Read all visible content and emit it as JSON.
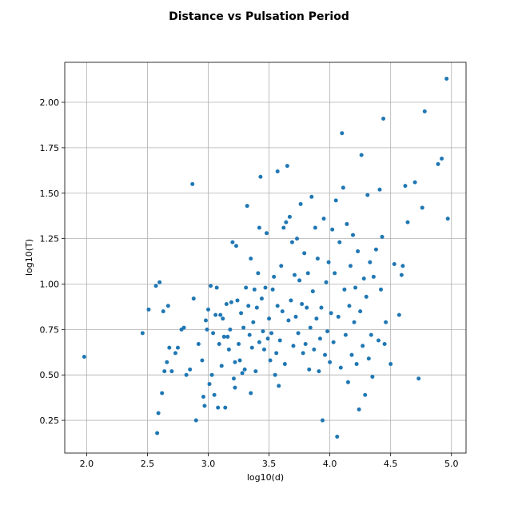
{
  "chart_data": {
    "type": "scatter",
    "title": "Distance vs Pulsation Period",
    "xlabel": "log10(d)",
    "ylabel": "log10(T)",
    "xlim": [
      1.82,
      5.12
    ],
    "ylim": [
      0.07,
      2.22
    ],
    "xticks": [
      2.0,
      2.5,
      3.0,
      3.5,
      4.0,
      4.5,
      5.0
    ],
    "xtick_labels": [
      "2.0",
      "2.5",
      "3.0",
      "3.5",
      "4.0",
      "4.5",
      "5.0"
    ],
    "yticks": [
      0.25,
      0.5,
      0.75,
      1.0,
      1.25,
      1.5,
      1.75,
      2.0
    ],
    "ytick_labels": [
      "0.25",
      "0.50",
      "0.75",
      "1.00",
      "1.25",
      "1.50",
      "1.75",
      "2.00"
    ],
    "grid": true,
    "point_color": "#1f77b4",
    "series": [
      {
        "points": [
          [
            1.98,
            0.6
          ],
          [
            2.46,
            0.73
          ],
          [
            2.51,
            0.86
          ],
          [
            2.57,
            0.99
          ],
          [
            2.58,
            0.18
          ],
          [
            2.59,
            0.29
          ],
          [
            2.6,
            1.01
          ],
          [
            2.62,
            0.4
          ],
          [
            2.63,
            0.85
          ],
          [
            2.64,
            0.52
          ],
          [
            2.66,
            0.57
          ],
          [
            2.67,
            0.88
          ],
          [
            2.68,
            0.65
          ],
          [
            2.7,
            0.52
          ],
          [
            2.73,
            0.62
          ],
          [
            2.75,
            0.65
          ],
          [
            2.78,
            0.75
          ],
          [
            2.8,
            0.76
          ],
          [
            2.82,
            0.5
          ],
          [
            2.85,
            0.53
          ],
          [
            2.87,
            1.55
          ],
          [
            2.88,
            0.92
          ],
          [
            2.9,
            0.25
          ],
          [
            2.92,
            0.67
          ],
          [
            2.95,
            0.58
          ],
          [
            2.96,
            0.38
          ],
          [
            2.97,
            0.33
          ],
          [
            2.98,
            0.8
          ],
          [
            2.99,
            0.75
          ],
          [
            3.0,
            0.86
          ],
          [
            3.01,
            0.45
          ],
          [
            3.02,
            0.99
          ],
          [
            3.03,
            0.5
          ],
          [
            3.04,
            0.73
          ],
          [
            3.05,
            0.39
          ],
          [
            3.06,
            0.83
          ],
          [
            3.07,
            0.98
          ],
          [
            3.08,
            0.32
          ],
          [
            3.09,
            0.67
          ],
          [
            3.1,
            0.83
          ],
          [
            3.11,
            0.55
          ],
          [
            3.12,
            0.81
          ],
          [
            3.13,
            0.71
          ],
          [
            3.14,
            0.32
          ],
          [
            3.15,
            0.89
          ],
          [
            3.16,
            0.71
          ],
          [
            3.17,
            0.64
          ],
          [
            3.18,
            0.75
          ],
          [
            3.19,
            0.9
          ],
          [
            3.2,
            1.23
          ],
          [
            3.21,
            0.48
          ],
          [
            3.22,
            0.43
          ],
          [
            3.22,
            0.57
          ],
          [
            3.23,
            1.21
          ],
          [
            3.24,
            0.91
          ],
          [
            3.25,
            0.67
          ],
          [
            3.26,
            0.58
          ],
          [
            3.27,
            0.84
          ],
          [
            3.28,
            0.51
          ],
          [
            3.29,
            0.76
          ],
          [
            3.3,
            0.53
          ],
          [
            3.31,
            0.98
          ],
          [
            3.32,
            1.43
          ],
          [
            3.33,
            0.88
          ],
          [
            3.34,
            0.72
          ],
          [
            3.35,
            0.4
          ],
          [
            3.35,
            1.14
          ],
          [
            3.36,
            0.65
          ],
          [
            3.37,
            0.79
          ],
          [
            3.38,
            0.97
          ],
          [
            3.39,
            0.52
          ],
          [
            3.4,
            0.87
          ],
          [
            3.41,
            1.06
          ],
          [
            3.42,
            0.68
          ],
          [
            3.42,
            1.31
          ],
          [
            3.43,
            1.59
          ],
          [
            3.44,
            0.92
          ],
          [
            3.45,
            0.74
          ],
          [
            3.46,
            0.64
          ],
          [
            3.47,
            0.98
          ],
          [
            3.48,
            1.28
          ],
          [
            3.49,
            0.7
          ],
          [
            3.5,
            0.81
          ],
          [
            3.51,
            0.58
          ],
          [
            3.52,
            0.73
          ],
          [
            3.53,
            0.97
          ],
          [
            3.54,
            1.04
          ],
          [
            3.55,
            0.5
          ],
          [
            3.56,
            0.62
          ],
          [
            3.57,
            1.62
          ],
          [
            3.57,
            0.88
          ],
          [
            3.58,
            0.44
          ],
          [
            3.59,
            0.69
          ],
          [
            3.6,
            1.1
          ],
          [
            3.61,
            0.85
          ],
          [
            3.62,
            1.31
          ],
          [
            3.63,
            0.56
          ],
          [
            3.64,
            1.34
          ],
          [
            3.65,
            1.65
          ],
          [
            3.66,
            0.8
          ],
          [
            3.67,
            1.37
          ],
          [
            3.68,
            0.91
          ],
          [
            3.69,
            1.23
          ],
          [
            3.7,
            0.66
          ],
          [
            3.71,
            1.05
          ],
          [
            3.72,
            0.82
          ],
          [
            3.73,
            1.25
          ],
          [
            3.74,
            0.73
          ],
          [
            3.75,
            1.02
          ],
          [
            3.76,
            1.44
          ],
          [
            3.77,
            0.89
          ],
          [
            3.78,
            0.62
          ],
          [
            3.79,
            1.17
          ],
          [
            3.8,
            0.67
          ],
          [
            3.81,
            0.87
          ],
          [
            3.82,
            1.06
          ],
          [
            3.83,
            0.53
          ],
          [
            3.84,
            0.76
          ],
          [
            3.85,
            1.48
          ],
          [
            3.86,
            0.96
          ],
          [
            3.87,
            0.64
          ],
          [
            3.88,
            1.31
          ],
          [
            3.89,
            0.81
          ],
          [
            3.9,
            1.14
          ],
          [
            3.91,
            0.52
          ],
          [
            3.92,
            0.7
          ],
          [
            3.93,
            0.87
          ],
          [
            3.94,
            0.25
          ],
          [
            3.95,
            1.36
          ],
          [
            3.96,
            0.61
          ],
          [
            3.97,
            1.01
          ],
          [
            3.98,
            0.74
          ],
          [
            3.99,
            1.12
          ],
          [
            4.0,
            0.57
          ],
          [
            4.01,
            0.84
          ],
          [
            4.02,
            1.3
          ],
          [
            4.03,
            0.68
          ],
          [
            4.04,
            1.06
          ],
          [
            4.05,
            1.46
          ],
          [
            4.06,
            0.16
          ],
          [
            4.07,
            0.82
          ],
          [
            4.08,
            1.23
          ],
          [
            4.09,
            0.54
          ],
          [
            4.1,
            1.83
          ],
          [
            4.11,
            1.53
          ],
          [
            4.12,
            0.97
          ],
          [
            4.13,
            0.72
          ],
          [
            4.14,
            1.33
          ],
          [
            4.15,
            0.46
          ],
          [
            4.16,
            0.88
          ],
          [
            4.17,
            1.1
          ],
          [
            4.18,
            0.61
          ],
          [
            4.19,
            1.27
          ],
          [
            4.2,
            0.79
          ],
          [
            4.21,
            0.98
          ],
          [
            4.22,
            0.56
          ],
          [
            4.23,
            1.18
          ],
          [
            4.24,
            0.31
          ],
          [
            4.25,
            0.85
          ],
          [
            4.26,
            1.71
          ],
          [
            4.27,
            0.66
          ],
          [
            4.28,
            1.03
          ],
          [
            4.29,
            0.39
          ],
          [
            4.3,
            0.93
          ],
          [
            4.31,
            1.49
          ],
          [
            4.32,
            0.59
          ],
          [
            4.33,
            1.12
          ],
          [
            4.34,
            0.72
          ],
          [
            4.35,
            0.49
          ],
          [
            4.36,
            1.04
          ],
          [
            4.38,
            1.19
          ],
          [
            4.4,
            0.69
          ],
          [
            4.41,
            1.52
          ],
          [
            4.42,
            0.97
          ],
          [
            4.43,
            1.26
          ],
          [
            4.44,
            1.91
          ],
          [
            4.45,
            0.67
          ],
          [
            4.46,
            0.79
          ],
          [
            4.5,
            0.56
          ],
          [
            4.53,
            1.11
          ],
          [
            4.57,
            0.83
          ],
          [
            4.59,
            1.05
          ],
          [
            4.6,
            1.1
          ],
          [
            4.62,
            1.54
          ],
          [
            4.64,
            1.34
          ],
          [
            4.7,
            1.56
          ],
          [
            4.73,
            0.48
          ],
          [
            4.76,
            1.42
          ],
          [
            4.78,
            1.95
          ],
          [
            4.89,
            1.66
          ],
          [
            4.92,
            1.69
          ],
          [
            4.96,
            2.13
          ],
          [
            4.97,
            1.36
          ]
        ]
      }
    ]
  }
}
